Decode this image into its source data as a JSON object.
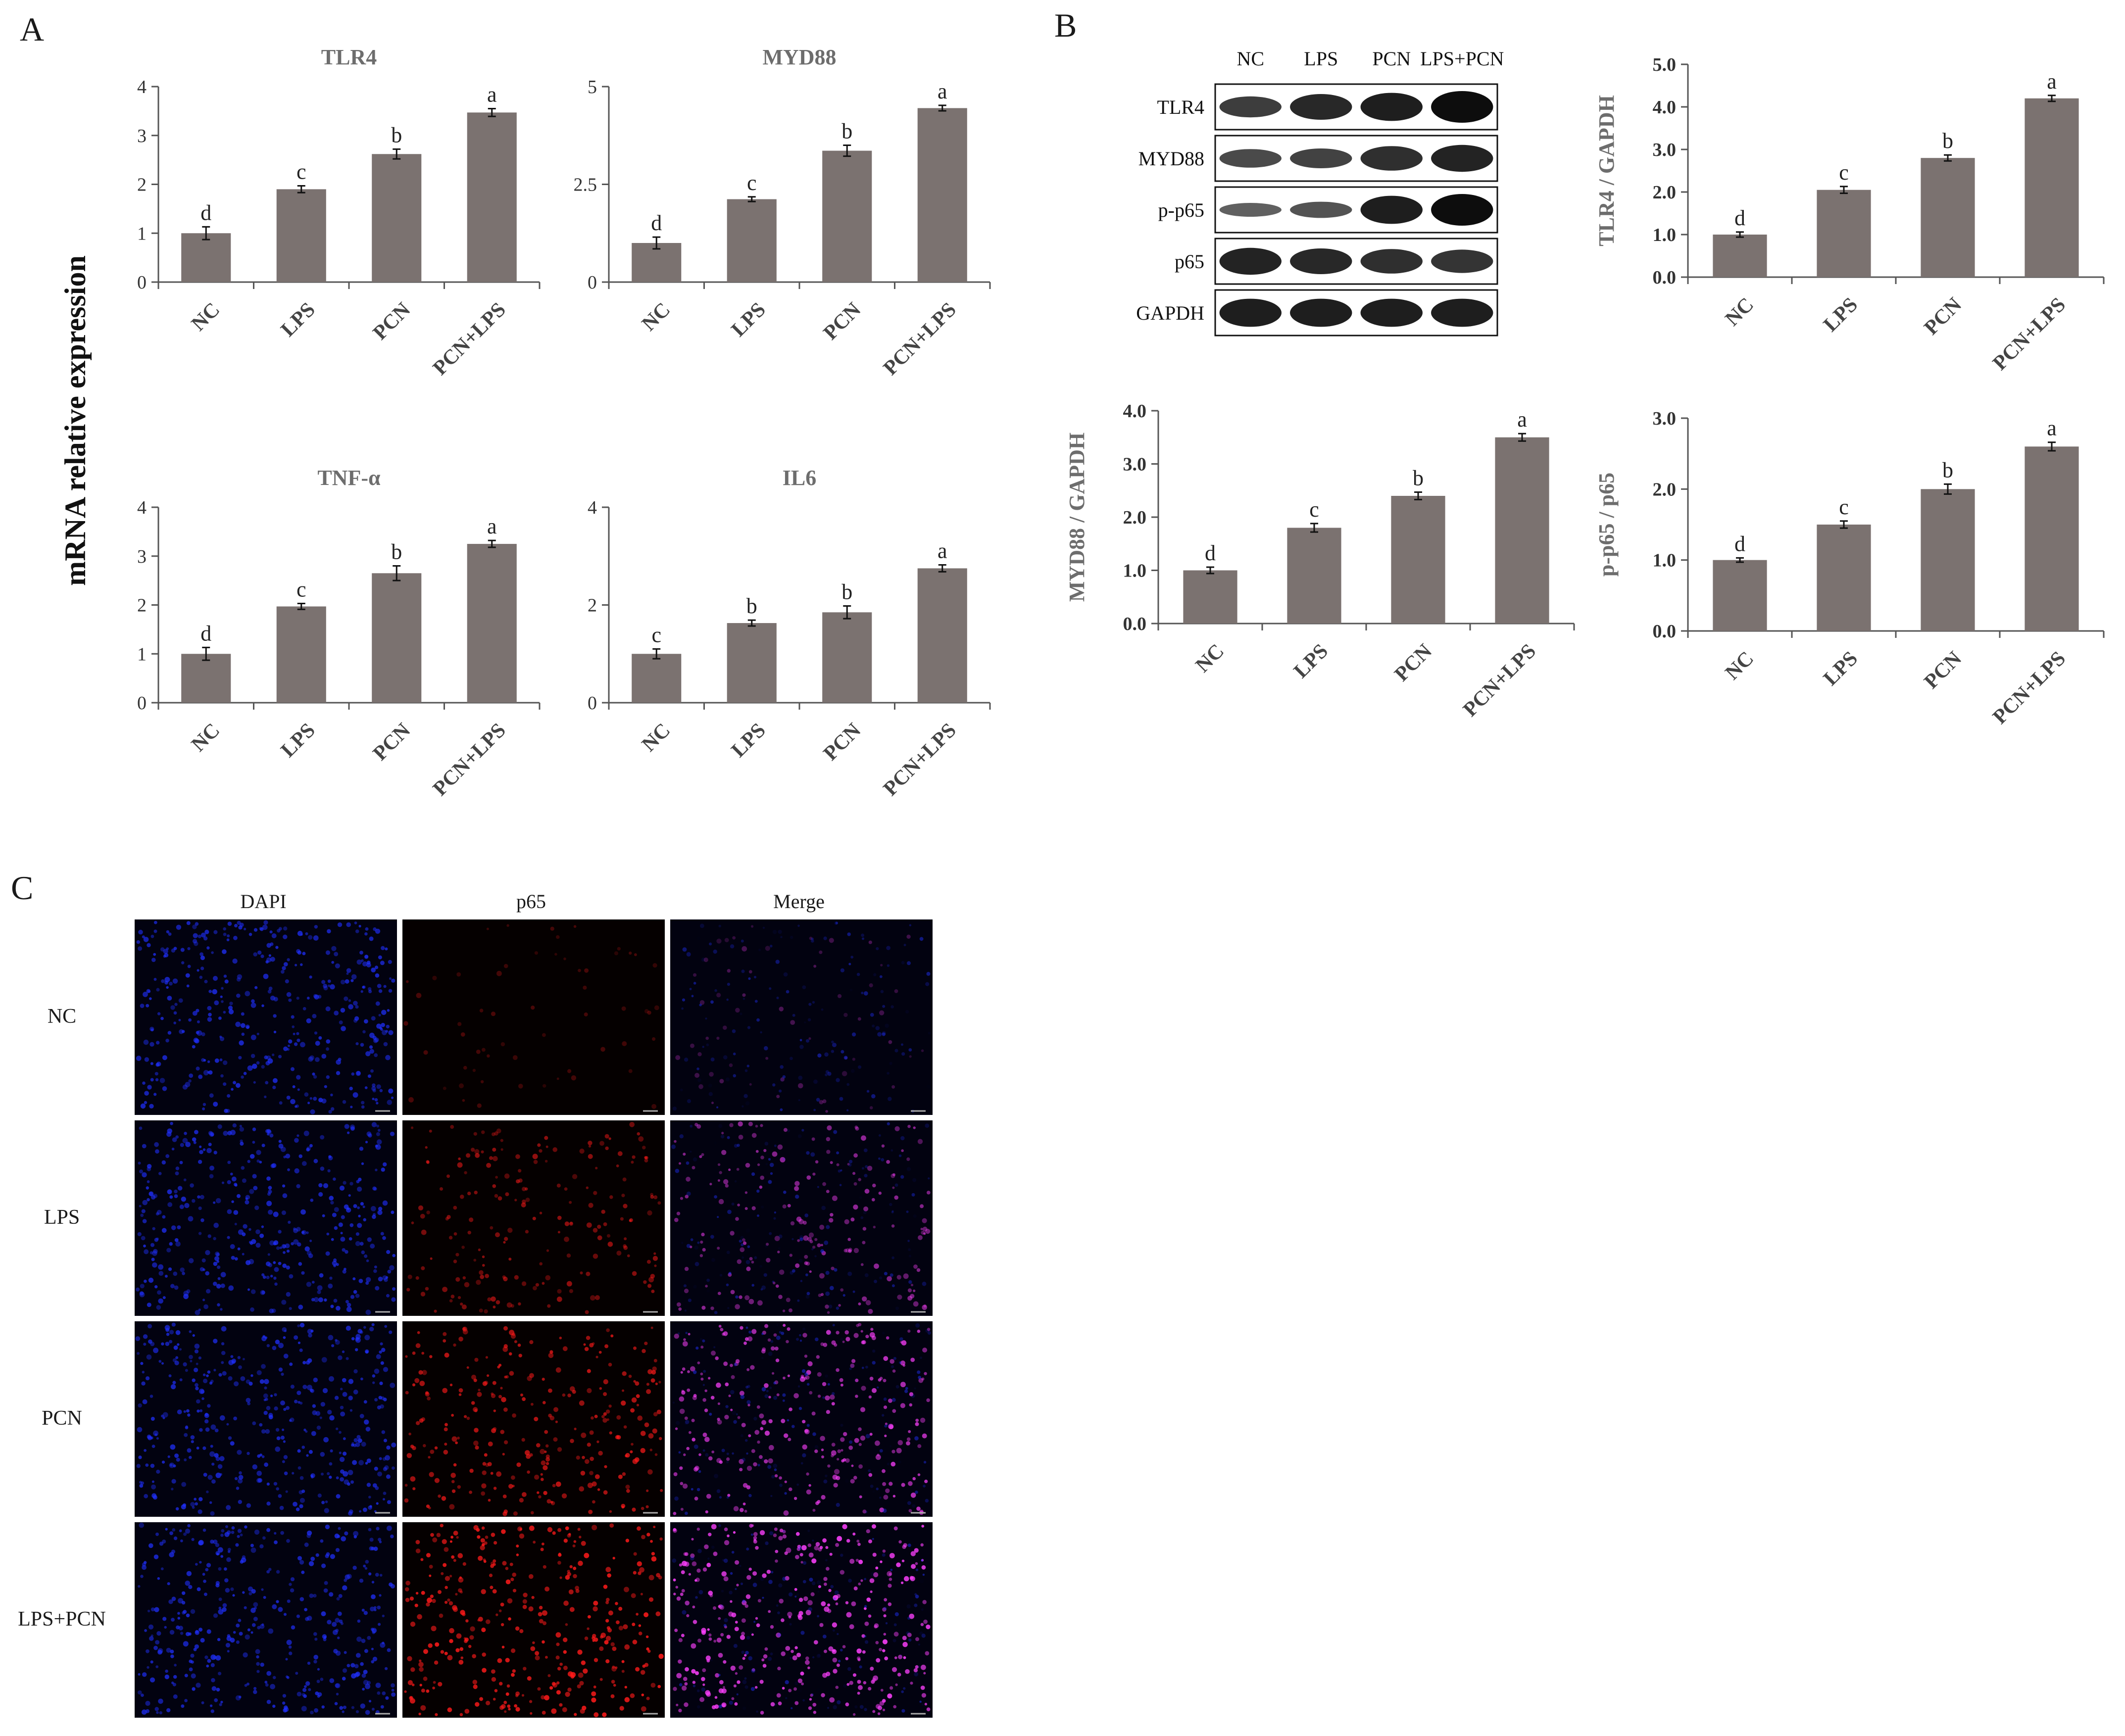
{
  "panel_labels": {
    "a": "A",
    "b": "B",
    "c": "C"
  },
  "section_a": {
    "ylabel": "mRNA relative expression"
  },
  "colors": {
    "bar": "#7b7270",
    "axis": "#555555",
    "title": "#6d6d6d",
    "letter": "#222222"
  },
  "chart_data": [
    {
      "type": "bar",
      "title": "TLR4",
      "categories": [
        "NC",
        "LPS",
        "PCN",
        "PCN+LPS"
      ],
      "values": [
        1.0,
        1.9,
        2.62,
        3.47
      ],
      "errors": [
        0.13,
        0.07,
        0.1,
        0.08
      ],
      "significance": [
        "d",
        "c",
        "b",
        "a"
      ],
      "yticks": [
        "0",
        "1",
        "2",
        "3",
        "4"
      ],
      "ylim": [
        0,
        4
      ],
      "xlabel": "",
      "ylabel": ""
    },
    {
      "type": "bar",
      "title": "MYD88",
      "categories": [
        "NC",
        "LPS",
        "PCN",
        "PCN+LPS"
      ],
      "values": [
        1.0,
        2.12,
        3.36,
        4.45
      ],
      "errors": [
        0.15,
        0.06,
        0.14,
        0.07
      ],
      "significance": [
        "d",
        "c",
        "b",
        "a"
      ],
      "yticks": [
        "0",
        "2.5",
        "5"
      ],
      "ylim": [
        0,
        5
      ],
      "xlabel": "",
      "ylabel": ""
    },
    {
      "type": "bar",
      "title": "TNF-α",
      "categories": [
        "NC",
        "LPS",
        "PCN",
        "PCN+LPS"
      ],
      "values": [
        1.0,
        1.97,
        2.65,
        3.25
      ],
      "errors": [
        0.13,
        0.06,
        0.15,
        0.07
      ],
      "significance": [
        "d",
        "c",
        "b",
        "a"
      ],
      "yticks": [
        "0",
        "1",
        "2",
        "3",
        "4"
      ],
      "ylim": [
        0,
        4
      ],
      "xlabel": "",
      "ylabel": ""
    },
    {
      "type": "bar",
      "title": "IL6",
      "categories": [
        "NC",
        "LPS",
        "PCN",
        "PCN+LPS"
      ],
      "values": [
        1.0,
        1.63,
        1.85,
        2.75
      ],
      "errors": [
        0.1,
        0.06,
        0.13,
        0.07
      ],
      "significance": [
        "c",
        "b",
        "b",
        "a"
      ],
      "yticks": [
        "0",
        "2",
        "4"
      ],
      "ylim": [
        0,
        4
      ],
      "xlabel": "",
      "ylabel": ""
    },
    {
      "type": "bar",
      "title": "",
      "categories": [
        "NC",
        "LPS",
        "PCN",
        "PCN+LPS"
      ],
      "values": [
        1.0,
        2.05,
        2.8,
        4.2
      ],
      "errors": [
        0.06,
        0.08,
        0.07,
        0.07
      ],
      "significance": [
        "d",
        "c",
        "b",
        "a"
      ],
      "yticks": [
        "0.0",
        "1.0",
        "2.0",
        "3.0",
        "4.0",
        "5.0"
      ],
      "ylim": [
        0,
        5
      ],
      "xlabel": "",
      "ylabel": "TLR4 / GAPDH"
    },
    {
      "type": "bar",
      "title": "",
      "categories": [
        "NC",
        "LPS",
        "PCN",
        "PCN+LPS"
      ],
      "values": [
        1.0,
        1.8,
        2.4,
        3.5
      ],
      "errors": [
        0.06,
        0.08,
        0.07,
        0.07
      ],
      "significance": [
        "d",
        "c",
        "b",
        "a"
      ],
      "yticks": [
        "0.0",
        "1.0",
        "2.0",
        "3.0",
        "4.0"
      ],
      "ylim": [
        0,
        4
      ],
      "xlabel": "",
      "ylabel": "MYD88 / GAPDH"
    },
    {
      "type": "bar",
      "title": "",
      "categories": [
        "NC",
        "LPS",
        "PCN",
        "PCN+LPS"
      ],
      "values": [
        1.0,
        1.5,
        2.0,
        2.6
      ],
      "errors": [
        0.03,
        0.05,
        0.07,
        0.06
      ],
      "significance": [
        "d",
        "c",
        "b",
        "a"
      ],
      "yticks": [
        "0.0",
        "1.0",
        "2.0",
        "3.0"
      ],
      "ylim": [
        0,
        3
      ],
      "xlabel": "",
      "ylabel": "p-p65 / p65"
    }
  ],
  "western_blot": {
    "lanes": [
      "NC",
      "LPS",
      "PCN",
      "LPS+PCN"
    ],
    "proteins": [
      "TLR4",
      "MYD88",
      "p-p65",
      "p65",
      "GAPDH"
    ],
    "band_intensity": [
      [
        0.55,
        0.75,
        0.85,
        1.0
      ],
      [
        0.45,
        0.5,
        0.7,
        0.8
      ],
      [
        0.25,
        0.35,
        0.85,
        1.0
      ],
      [
        0.8,
        0.75,
        0.7,
        0.65
      ],
      [
        0.85,
        0.85,
        0.85,
        0.85
      ]
    ]
  },
  "immunofluorescence": {
    "columns": [
      "DAPI",
      "p65",
      "Merge"
    ],
    "rows": [
      "NC",
      "LPS",
      "PCN",
      "LPS+PCN"
    ],
    "p65_signal_level": [
      0.05,
      0.45,
      0.7,
      0.9
    ],
    "colors": {
      "dapi": "#2030ff",
      "p65": "#ff1a1a",
      "merge": "#ff40ff"
    }
  }
}
